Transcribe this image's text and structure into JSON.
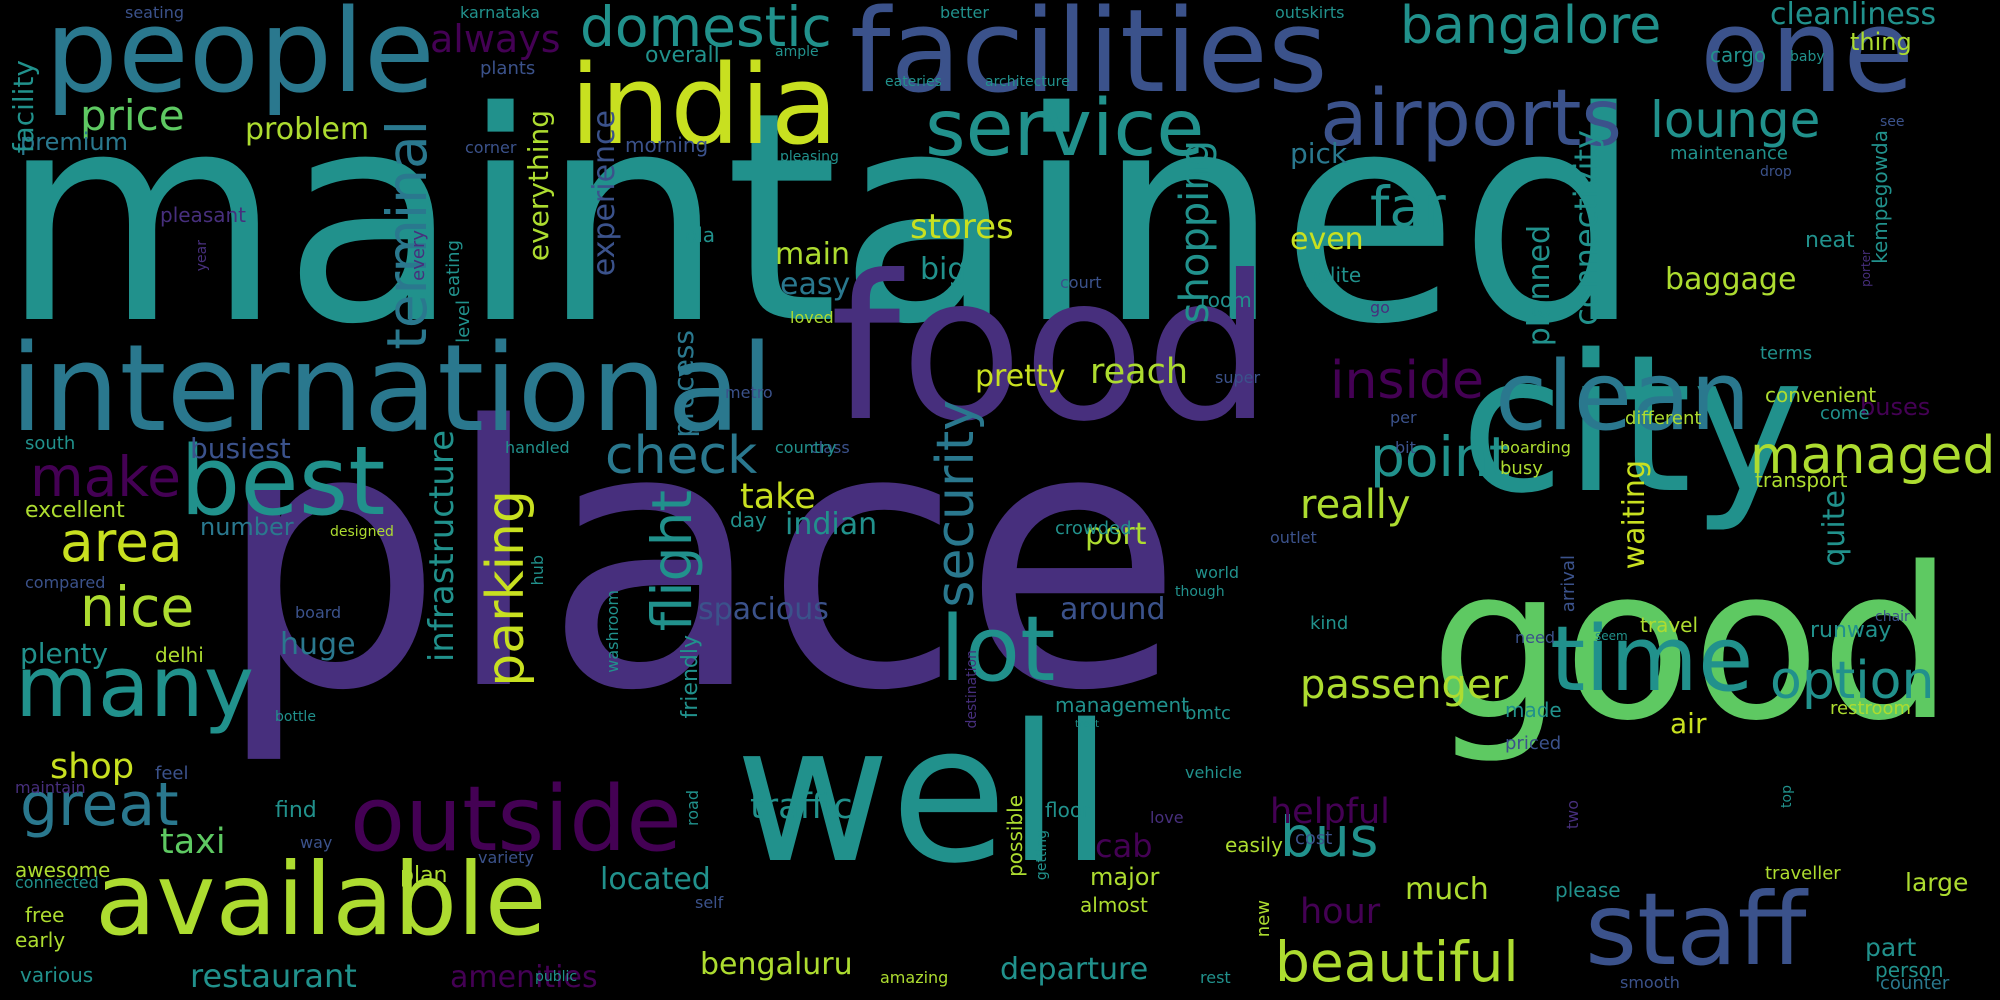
{
  "title": "",
  "background": "#000000",
  "colors": {
    "teal": "#21918c",
    "purple": "#472f7d",
    "green": "#5ec962",
    "blue": "#3b528b",
    "yellow": "#c8e020",
    "lime": "#addc30",
    "darkpurple": "#440154",
    "aqua": "#2a788e",
    "dark": "#3e4a89"
  },
  "words": [
    "maintained",
    "place",
    "food",
    "good",
    "well",
    "city",
    "international",
    "facilities",
    "people",
    "one",
    "india",
    "service",
    "airports",
    "clean",
    "best",
    "available",
    "staff",
    "outside",
    "lot",
    "time",
    "many",
    "great",
    "nice",
    "area",
    "make",
    "bangalore",
    "domestic",
    "lounge",
    "terminal",
    "far",
    "inside",
    "point",
    "managed",
    "check",
    "parking",
    "flight",
    "security",
    "option",
    "passenger",
    "beautiful",
    "bus",
    "traffic",
    "shop",
    "taxi",
    "price",
    "problem",
    "always",
    "premium",
    "facility",
    "experience",
    "shopping",
    "connectivity",
    "baggage",
    "stores",
    "reach",
    "pretty",
    "busiest",
    "infrastructure",
    "take",
    "really",
    "helpful",
    "cab",
    "hour",
    "restaurant",
    "located",
    "departure",
    "amenities",
    "bengaluru",
    "spacious",
    "around",
    "huge",
    "plenty",
    "excellent",
    "number",
    "indian",
    "port",
    "even",
    "main",
    "easy",
    "big",
    "process",
    "everything",
    "planned",
    "cleanliness",
    "thing",
    "pick",
    "quite",
    "waiting",
    "buses",
    "transport",
    "convenient",
    "neat",
    "kempegowda",
    "porter",
    "restroom",
    "runway",
    "travel",
    "air",
    "much",
    "major",
    "part",
    "person",
    "large",
    "traveller",
    "counter",
    "smooth",
    "please",
    "possible",
    "plan",
    "management",
    "made",
    "priced",
    "different",
    "busy",
    "arrival",
    "class",
    "metro",
    "country",
    "day",
    "feel",
    "maintain",
    "awesome",
    "connected",
    "free",
    "early",
    "various",
    "south",
    "delhi",
    "compared",
    "seating",
    "karnataka",
    "better",
    "outskirts",
    "overall",
    "ample",
    "baby",
    "cargo",
    "plants",
    "eateries",
    "architecture",
    "corner",
    "morning",
    "pleasing",
    "maintenance",
    "drop",
    "see",
    "pleasant",
    "year",
    "every",
    "eating",
    "level",
    "ola",
    "court",
    "room",
    "go",
    "polite",
    "loved",
    "bottle",
    "super",
    "terms",
    "come",
    "per",
    "bit",
    "boarding",
    "handled",
    "designed",
    "outlet",
    "crowded",
    "world",
    "though",
    "hub",
    "washroom",
    "friendly",
    "destination",
    "road",
    "self",
    "public",
    "amazing",
    "rest",
    "getting",
    "almost",
    "new",
    "cost",
    "easily",
    "love",
    "two",
    "top",
    "seem",
    "need",
    "kind",
    "vehicle",
    "bmtc",
    "treat",
    "board",
    "find",
    "floor",
    "way",
    "variety",
    "chair"
  ]
}
